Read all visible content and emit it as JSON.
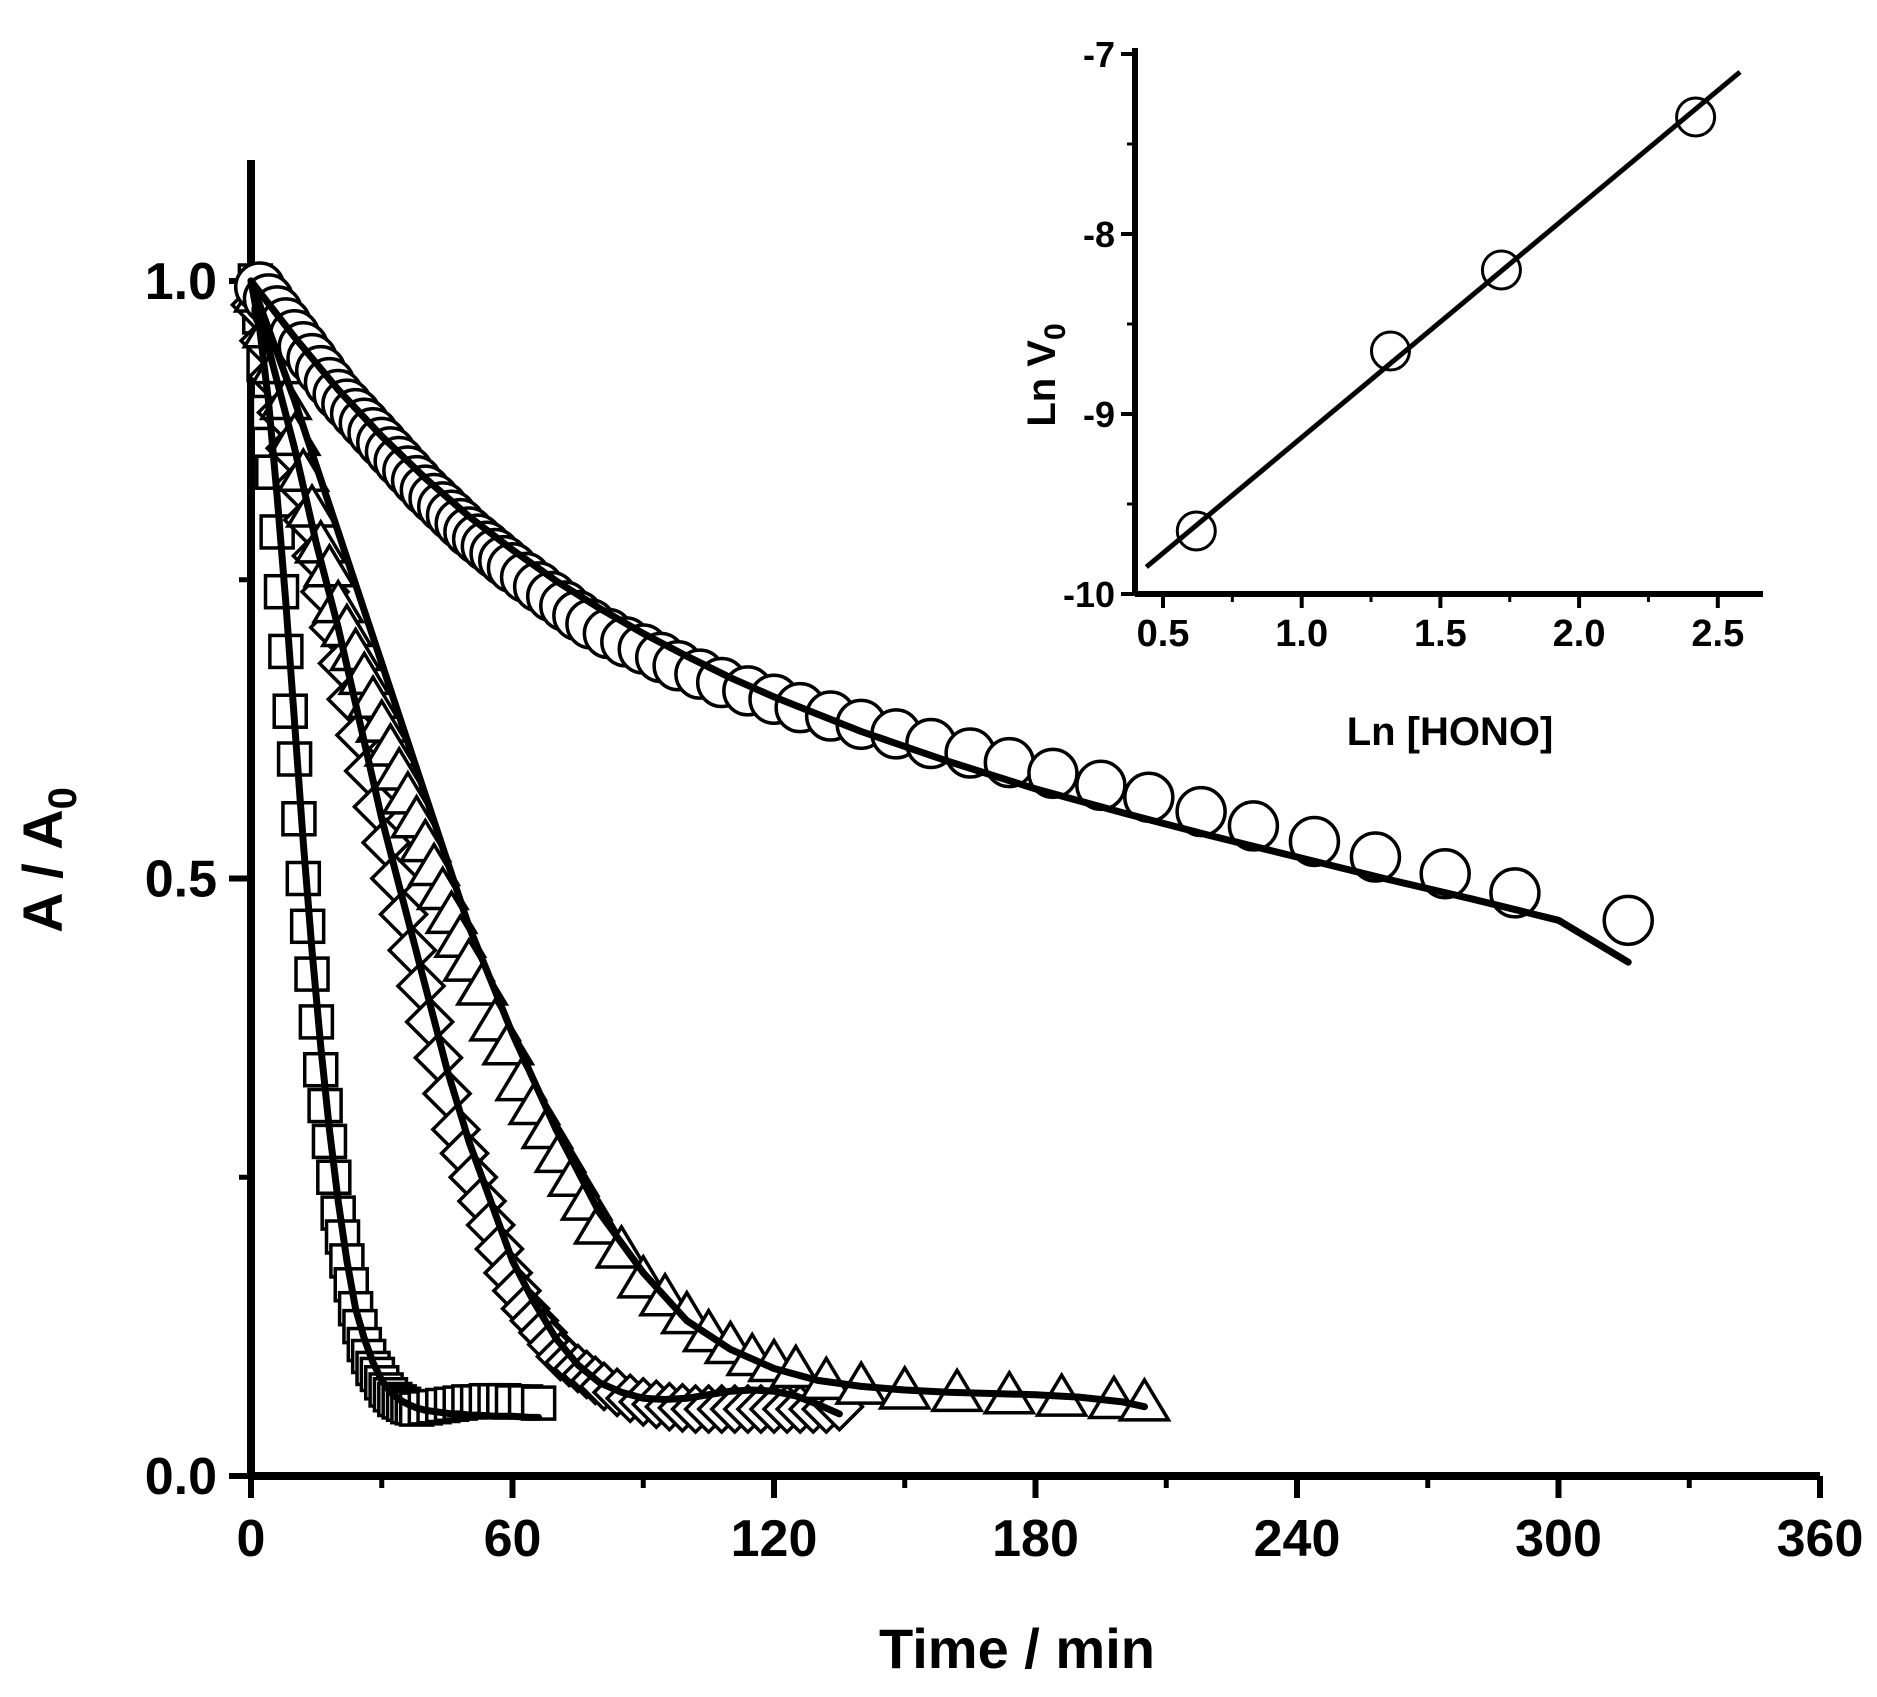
{
  "chart_data": [
    {
      "type": "scatter",
      "role": "main",
      "xlabel": "Time / min",
      "ylabel_main": "A / A",
      "ylabel_sub": "0",
      "xlim": [
        0,
        360
      ],
      "ylim": [
        0,
        1.1
      ],
      "xticks": [
        0,
        60,
        120,
        180,
        240,
        300,
        360
      ],
      "xtick_labels": [
        "0",
        "60",
        "120",
        "180",
        "240",
        "300",
        "360"
      ],
      "xminor": [
        30,
        90,
        150,
        210,
        270,
        330
      ],
      "yticks": [
        0,
        0.5,
        1.0
      ],
      "ytick_labels": [
        "0.0",
        "0.5",
        "1.0"
      ],
      "yminor": [
        0.25,
        0.75
      ],
      "series": [
        {
          "name": "squares",
          "marker": "square",
          "x": [
            1,
            2,
            3,
            4,
            5,
            6,
            7,
            8,
            9,
            10,
            11,
            12,
            13,
            14,
            15,
            16,
            17,
            18,
            19,
            20,
            21,
            22,
            23,
            24,
            25,
            26,
            27,
            28,
            29,
            30,
            31,
            32,
            33,
            34,
            35,
            36,
            37,
            38,
            40,
            42,
            44,
            46,
            48,
            50,
            52,
            54,
            56,
            58,
            60,
            63,
            66
          ],
          "y": [
            1.0,
            0.97,
            0.93,
            0.89,
            0.84,
            0.79,
            0.74,
            0.69,
            0.64,
            0.6,
            0.55,
            0.5,
            0.46,
            0.42,
            0.38,
            0.34,
            0.31,
            0.28,
            0.25,
            0.22,
            0.2,
            0.18,
            0.16,
            0.14,
            0.125,
            0.11,
            0.1,
            0.09,
            0.085,
            0.078,
            0.072,
            0.068,
            0.064,
            0.062,
            0.06,
            0.058,
            0.057,
            0.056,
            0.057,
            0.058,
            0.059,
            0.06,
            0.061,
            0.062,
            0.062,
            0.063,
            0.063,
            0.063,
            0.062,
            0.062,
            0.061
          ]
        },
        {
          "name": "diamonds",
          "marker": "diamond",
          "x": [
            1,
            3,
            5,
            7,
            9,
            11,
            13,
            15,
            17,
            19,
            21,
            23,
            25,
            27,
            29,
            31,
            33,
            35,
            37,
            39,
            41,
            43,
            45,
            47,
            49,
            51,
            53,
            55,
            57,
            59,
            61,
            63,
            65,
            67,
            69,
            71,
            73,
            75,
            77,
            79,
            81,
            84,
            87,
            90,
            93,
            96,
            99,
            102,
            105,
            108,
            111,
            114,
            117,
            120,
            123,
            126,
            129,
            132,
            135
          ],
          "y": [
            0.98,
            0.95,
            0.92,
            0.89,
            0.86,
            0.83,
            0.8,
            0.77,
            0.74,
            0.71,
            0.68,
            0.65,
            0.62,
            0.59,
            0.56,
            0.53,
            0.5,
            0.47,
            0.44,
            0.41,
            0.38,
            0.35,
            0.32,
            0.29,
            0.27,
            0.25,
            0.23,
            0.21,
            0.19,
            0.17,
            0.155,
            0.14,
            0.13,
            0.12,
            0.11,
            0.1,
            0.095,
            0.09,
            0.085,
            0.08,
            0.075,
            0.07,
            0.065,
            0.062,
            0.06,
            0.058,
            0.057,
            0.056,
            0.056,
            0.056,
            0.056,
            0.056,
            0.056,
            0.056,
            0.056,
            0.056,
            0.056,
            0.056,
            0.058
          ]
        },
        {
          "name": "triangles",
          "marker": "triangle",
          "x": [
            2,
            4,
            6,
            8,
            10,
            12,
            14,
            16,
            18,
            20,
            22,
            24,
            26,
            28,
            30,
            32,
            34,
            36,
            38,
            40,
            42,
            44,
            46,
            48,
            50,
            53,
            56,
            59,
            62,
            65,
            68,
            71,
            74,
            77,
            80,
            85,
            90,
            95,
            100,
            105,
            110,
            115,
            120,
            125,
            132,
            140,
            150,
            162,
            174,
            186,
            198,
            205
          ],
          "y": [
            0.99,
            0.96,
            0.93,
            0.9,
            0.87,
            0.84,
            0.81,
            0.78,
            0.76,
            0.73,
            0.71,
            0.69,
            0.67,
            0.65,
            0.63,
            0.61,
            0.59,
            0.57,
            0.55,
            0.53,
            0.51,
            0.49,
            0.47,
            0.45,
            0.43,
            0.41,
            0.38,
            0.36,
            0.33,
            0.31,
            0.29,
            0.27,
            0.25,
            0.23,
            0.21,
            0.19,
            0.165,
            0.15,
            0.135,
            0.12,
            0.11,
            0.1,
            0.095,
            0.09,
            0.08,
            0.076,
            0.072,
            0.07,
            0.068,
            0.066,
            0.064,
            0.062
          ]
        },
        {
          "name": "circles",
          "marker": "circle",
          "x": [
            2,
            4,
            6,
            8,
            10,
            12,
            14,
            16,
            18,
            20,
            22,
            24,
            26,
            28,
            30,
            32,
            34,
            36,
            38,
            40,
            42,
            44,
            46,
            48,
            50,
            52,
            54,
            56,
            58,
            60,
            63,
            66,
            69,
            72,
            75,
            78,
            82,
            86,
            90,
            94,
            98,
            103,
            108,
            114,
            120,
            126,
            133,
            140,
            148,
            156,
            165,
            174,
            184,
            195,
            206,
            218,
            230,
            244,
            258,
            274,
            290,
            316
          ],
          "y": [
            0.995,
            0.985,
            0.975,
            0.965,
            0.955,
            0.945,
            0.935,
            0.925,
            0.915,
            0.905,
            0.897,
            0.889,
            0.881,
            0.873,
            0.865,
            0.857,
            0.849,
            0.841,
            0.833,
            0.825,
            0.818,
            0.811,
            0.804,
            0.797,
            0.79,
            0.784,
            0.778,
            0.772,
            0.766,
            0.76,
            0.752,
            0.744,
            0.736,
            0.728,
            0.72,
            0.713,
            0.705,
            0.698,
            0.692,
            0.685,
            0.678,
            0.671,
            0.664,
            0.657,
            0.65,
            0.643,
            0.636,
            0.629,
            0.621,
            0.613,
            0.605,
            0.597,
            0.588,
            0.578,
            0.568,
            0.556,
            0.544,
            0.531,
            0.518,
            0.504,
            0.488,
            0.465
          ]
        }
      ],
      "fits": [
        {
          "name": "fit-squares",
          "x": [
            0,
            2,
            4,
            6,
            8,
            10,
            12,
            14,
            16,
            18,
            20,
            22,
            24,
            26,
            28,
            30,
            32,
            34,
            36,
            38,
            40,
            42,
            44,
            46,
            48,
            50,
            52,
            56,
            60,
            64,
            66
          ],
          "y": [
            1.0,
            0.96,
            0.9,
            0.82,
            0.73,
            0.63,
            0.53,
            0.44,
            0.36,
            0.29,
            0.23,
            0.18,
            0.14,
            0.115,
            0.095,
            0.08,
            0.07,
            0.064,
            0.06,
            0.057,
            0.055,
            0.054,
            0.053,
            0.052,
            0.052,
            0.051,
            0.051,
            0.05,
            0.05,
            0.049,
            0.049
          ]
        },
        {
          "name": "fit-diamonds",
          "x": [
            0,
            5,
            10,
            15,
            20,
            25,
            30,
            35,
            40,
            45,
            50,
            55,
            60,
            65,
            70,
            75,
            80,
            85,
            90,
            95,
            100,
            105,
            110,
            115,
            120,
            125,
            130,
            135
          ],
          "y": [
            1.0,
            0.93,
            0.86,
            0.78,
            0.71,
            0.63,
            0.55,
            0.48,
            0.41,
            0.34,
            0.28,
            0.23,
            0.18,
            0.145,
            0.115,
            0.093,
            0.078,
            0.07,
            0.065,
            0.064,
            0.065,
            0.068,
            0.071,
            0.072,
            0.071,
            0.067,
            0.06,
            0.052
          ]
        },
        {
          "name": "fit-triangles",
          "x": [
            0,
            10,
            20,
            30,
            40,
            50,
            60,
            70,
            80,
            90,
            100,
            110,
            120,
            130,
            140,
            150,
            160,
            170,
            180,
            190,
            200,
            205
          ],
          "y": [
            1.0,
            0.9,
            0.79,
            0.68,
            0.57,
            0.46,
            0.37,
            0.29,
            0.22,
            0.17,
            0.13,
            0.106,
            0.09,
            0.08,
            0.075,
            0.072,
            0.07,
            0.069,
            0.068,
            0.066,
            0.062,
            0.058
          ]
        },
        {
          "name": "fit-circles",
          "x": [
            0,
            10,
            20,
            30,
            40,
            50,
            60,
            70,
            80,
            90,
            100,
            110,
            120,
            140,
            160,
            180,
            200,
            220,
            240,
            260,
            280,
            300,
            316
          ],
          "y": [
            1.0,
            0.953,
            0.909,
            0.87,
            0.835,
            0.803,
            0.775,
            0.749,
            0.726,
            0.705,
            0.686,
            0.668,
            0.652,
            0.623,
            0.598,
            0.575,
            0.555,
            0.536,
            0.518,
            0.5,
            0.483,
            0.465,
            0.43
          ]
        }
      ]
    },
    {
      "type": "scatter",
      "role": "inset",
      "xlabel": "Ln [HONO]",
      "ylabel_main": "Ln V",
      "ylabel_sub": "0",
      "xlim": [
        0.4,
        2.6
      ],
      "ylim": [
        -10,
        -7
      ],
      "xticks": [
        0.5,
        1.0,
        1.5,
        2.0,
        2.5
      ],
      "xtick_labels": [
        "0.5",
        "1.0",
        "1.5",
        "2.0",
        "2.5"
      ],
      "yticks": [
        -10,
        -9,
        -8,
        -7
      ],
      "ytick_labels": [
        "-10",
        "-9",
        "-8",
        "-7"
      ],
      "points": {
        "x": [
          0.62,
          1.32,
          1.72,
          2.42
        ],
        "y": [
          -9.65,
          -8.65,
          -8.2,
          -7.35
        ]
      },
      "fit_line": {
        "x": [
          0.44,
          2.58
        ],
        "y": [
          -9.85,
          -7.1
        ]
      }
    }
  ]
}
